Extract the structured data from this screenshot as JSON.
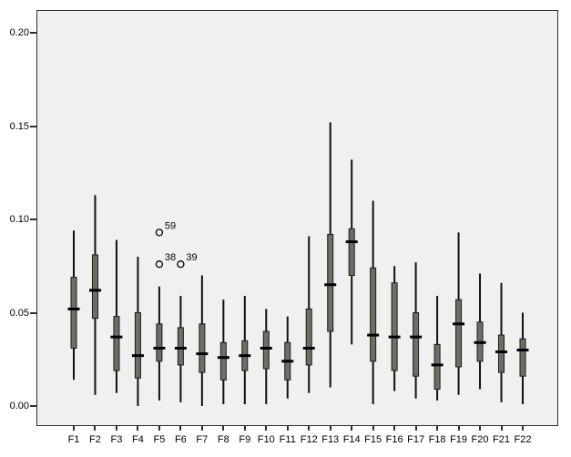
{
  "figure": {
    "background": "#ffffff",
    "plot_background": "#f0f0f0",
    "frame_color": "#2e2e2e"
  },
  "chart_data": {
    "type": "boxplot",
    "title": "",
    "xlabel": "",
    "ylabel": "",
    "ylim": [
      -0.011,
      0.212
    ],
    "grid": false,
    "legend": "none",
    "style": {
      "box_fill": "#6e6e62",
      "box_border": "#1a1a1a",
      "whisker_color": "#111111",
      "median_color": "#000000",
      "outlier_stroke": "#000000"
    },
    "y_ticks": [
      {
        "label": "0.00",
        "value": 0.0
      },
      {
        "label": "0.05",
        "value": 0.05
      },
      {
        "label": "0.10",
        "value": 0.1
      },
      {
        "label": "0.15",
        "value": 0.15
      },
      {
        "label": "0.20",
        "value": 0.2
      }
    ],
    "categories": [
      "F1",
      "F2",
      "F3",
      "F4",
      "F5",
      "F6",
      "F7",
      "F8",
      "F9",
      "F10",
      "F11",
      "F12",
      "F13",
      "F14",
      "F15",
      "F16",
      "F17",
      "F18",
      "F19",
      "F20",
      "F21",
      "F22"
    ],
    "boxes": [
      {
        "category": "F1",
        "min": 0.014,
        "q1": 0.031,
        "median": 0.052,
        "q3": 0.069,
        "max": 0.094,
        "outliers": []
      },
      {
        "category": "F2",
        "min": 0.006,
        "q1": 0.047,
        "median": 0.062,
        "q3": 0.081,
        "max": 0.113,
        "outliers": []
      },
      {
        "category": "F3",
        "min": 0.007,
        "q1": 0.019,
        "median": 0.037,
        "q3": 0.048,
        "max": 0.089,
        "outliers": []
      },
      {
        "category": "F4",
        "min": 0.0,
        "q1": 0.015,
        "median": 0.027,
        "q3": 0.05,
        "max": 0.08,
        "outliers": []
      },
      {
        "category": "F5",
        "min": 0.003,
        "q1": 0.024,
        "median": 0.031,
        "q3": 0.044,
        "max": 0.064,
        "outliers": [
          {
            "value": 0.076,
            "label": "38"
          },
          {
            "value": 0.093,
            "label": "59"
          }
        ]
      },
      {
        "category": "F6",
        "min": 0.002,
        "q1": 0.022,
        "median": 0.031,
        "q3": 0.042,
        "max": 0.059,
        "outliers": [
          {
            "value": 0.076,
            "label": "39"
          }
        ]
      },
      {
        "category": "F7",
        "min": 0.0,
        "q1": 0.018,
        "median": 0.028,
        "q3": 0.044,
        "max": 0.07,
        "outliers": []
      },
      {
        "category": "F8",
        "min": 0.001,
        "q1": 0.014,
        "median": 0.026,
        "q3": 0.034,
        "max": 0.057,
        "outliers": []
      },
      {
        "category": "F9",
        "min": 0.001,
        "q1": 0.019,
        "median": 0.027,
        "q3": 0.035,
        "max": 0.059,
        "outliers": []
      },
      {
        "category": "F10",
        "min": 0.001,
        "q1": 0.02,
        "median": 0.031,
        "q3": 0.04,
        "max": 0.052,
        "outliers": []
      },
      {
        "category": "F11",
        "min": 0.004,
        "q1": 0.014,
        "median": 0.024,
        "q3": 0.034,
        "max": 0.048,
        "outliers": []
      },
      {
        "category": "F12",
        "min": 0.007,
        "q1": 0.022,
        "median": 0.031,
        "q3": 0.052,
        "max": 0.091,
        "outliers": []
      },
      {
        "category": "F13",
        "min": 0.01,
        "q1": 0.04,
        "median": 0.065,
        "q3": 0.092,
        "max": 0.152,
        "outliers": []
      },
      {
        "category": "F14",
        "min": 0.033,
        "q1": 0.07,
        "median": 0.088,
        "q3": 0.095,
        "max": 0.132,
        "outliers": []
      },
      {
        "category": "F15",
        "min": 0.001,
        "q1": 0.024,
        "median": 0.038,
        "q3": 0.074,
        "max": 0.11,
        "outliers": []
      },
      {
        "category": "F16",
        "min": 0.008,
        "q1": 0.019,
        "median": 0.037,
        "q3": 0.066,
        "max": 0.075,
        "outliers": []
      },
      {
        "category": "F17",
        "min": 0.004,
        "q1": 0.016,
        "median": 0.037,
        "q3": 0.05,
        "max": 0.077,
        "outliers": []
      },
      {
        "category": "F18",
        "min": 0.003,
        "q1": 0.009,
        "median": 0.022,
        "q3": 0.033,
        "max": 0.059,
        "outliers": []
      },
      {
        "category": "F19",
        "min": 0.006,
        "q1": 0.021,
        "median": 0.044,
        "q3": 0.057,
        "max": 0.093,
        "outliers": []
      },
      {
        "category": "F20",
        "min": 0.009,
        "q1": 0.024,
        "median": 0.034,
        "q3": 0.045,
        "max": 0.071,
        "outliers": []
      },
      {
        "category": "F21",
        "min": 0.002,
        "q1": 0.018,
        "median": 0.029,
        "q3": 0.038,
        "max": 0.066,
        "outliers": []
      },
      {
        "category": "F22",
        "min": 0.001,
        "q1": 0.016,
        "median": 0.03,
        "q3": 0.036,
        "max": 0.05,
        "outliers": []
      }
    ]
  }
}
